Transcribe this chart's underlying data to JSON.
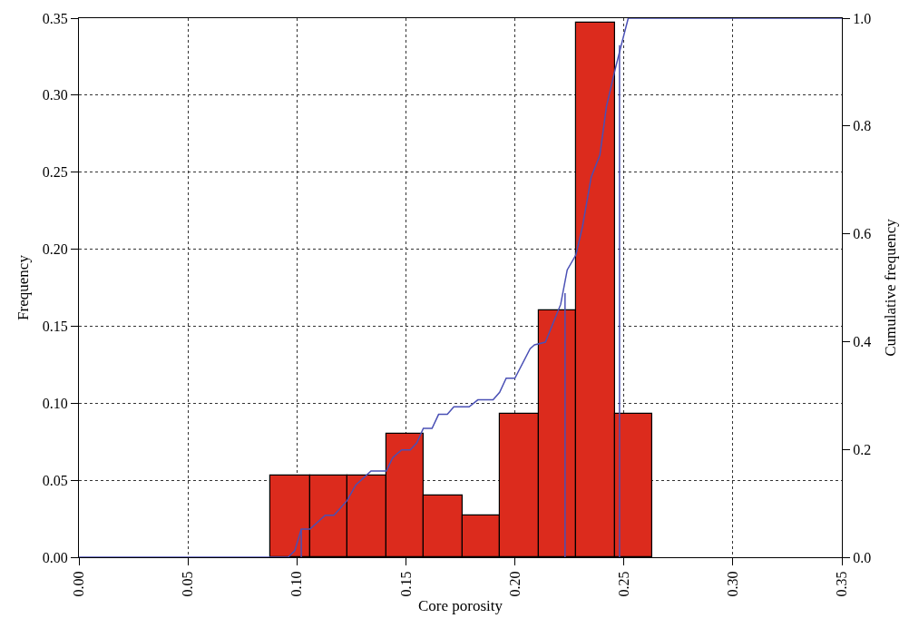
{
  "chart_data": {
    "type": "histogram",
    "xlabel": "Core porosity",
    "ylabel": "Frequency",
    "y2label": "Cumulative frequency",
    "series": [
      {
        "type": "histogram",
        "color": "#dc2b1d",
        "bins": [
          0.088,
          0.106,
          0.123,
          0.141,
          0.158,
          0.176,
          0.193,
          0.211,
          0.228,
          0.246,
          0.263
        ],
        "values": [
          0.053,
          0.053,
          0.053,
          0.08,
          0.04,
          0.027,
          0.093,
          0.16,
          0.347,
          0.093
        ]
      },
      {
        "type": "line",
        "axis": "y2",
        "color": "#4a50b5",
        "x": [
          0,
          0.096,
          0.099,
          0.102,
          0.106,
          0.113,
          0.117,
          0.123,
          0.127,
          0.134,
          0.141,
          0.144,
          0.148,
          0.152,
          0.155,
          0.158,
          0.162,
          0.165,
          0.169,
          0.172,
          0.179,
          0.183,
          0.19,
          0.193,
          0.196,
          0.2,
          0.207,
          0.209,
          0.214,
          0.221,
          0.224,
          0.228,
          0.231,
          0.235,
          0.239,
          0.242,
          0.246,
          0.249,
          0.252,
          0.35
        ],
        "values": [
          0,
          0,
          0.012,
          0.052,
          0.052,
          0.078,
          0.078,
          0.105,
          0.134,
          0.16,
          0.16,
          0.185,
          0.199,
          0.199,
          0.212,
          0.239,
          0.239,
          0.265,
          0.265,
          0.279,
          0.279,
          0.292,
          0.292,
          0.306,
          0.332,
          0.332,
          0.387,
          0.394,
          0.399,
          0.469,
          0.533,
          0.561,
          0.613,
          0.705,
          0.746,
          0.836,
          0.905,
          0.953,
          1.0,
          1.0
        ]
      },
      {
        "type": "line",
        "axis": "y2",
        "color": "#4a50b5",
        "x": [
          0.102,
          0.102
        ],
        "values": [
          0,
          0.052
        ]
      },
      {
        "type": "line",
        "axis": "y2",
        "color": "#4a50b5",
        "x": [
          0.223,
          0.223
        ],
        "values": [
          0,
          0.49
        ]
      },
      {
        "type": "line",
        "axis": "y2",
        "color": "#4a50b5",
        "x": [
          0.248,
          0.248
        ],
        "values": [
          0,
          0.95
        ]
      }
    ],
    "xlim": [
      0,
      0.35
    ],
    "xticks": [
      {
        "value": 0,
        "label": "0.00"
      },
      {
        "value": 0.05,
        "label": "0.05"
      },
      {
        "value": 0.1,
        "label": "0.10"
      },
      {
        "value": 0.15,
        "label": "0.15"
      },
      {
        "value": 0.2,
        "label": "0.20"
      },
      {
        "value": 0.25,
        "label": "0.25"
      },
      {
        "value": 0.3,
        "label": "0.30"
      },
      {
        "value": 0.35,
        "label": "0.35"
      }
    ],
    "ylim": [
      0,
      0.35
    ],
    "yticks": [
      {
        "value": 0,
        "label": "0.00"
      },
      {
        "value": 0.05,
        "label": "0.05"
      },
      {
        "value": 0.1,
        "label": "0.10"
      },
      {
        "value": 0.15,
        "label": "0.15"
      },
      {
        "value": 0.2,
        "label": "0.20"
      },
      {
        "value": 0.25,
        "label": "0.25"
      },
      {
        "value": 0.3,
        "label": "0.30"
      },
      {
        "value": 0.35,
        "label": "0.35"
      }
    ],
    "y2lim": [
      0,
      1
    ],
    "y2ticks": [
      {
        "value": 0,
        "label": "0.0"
      },
      {
        "value": 0.2,
        "label": "0.2"
      },
      {
        "value": 0.4,
        "label": "0.4"
      },
      {
        "value": 0.6,
        "label": "0.6"
      },
      {
        "value": 0.8,
        "label": "0.8"
      },
      {
        "value": 1,
        "label": "1.0"
      }
    ],
    "grid": true,
    "marker": "none",
    "line_style": "solid"
  }
}
